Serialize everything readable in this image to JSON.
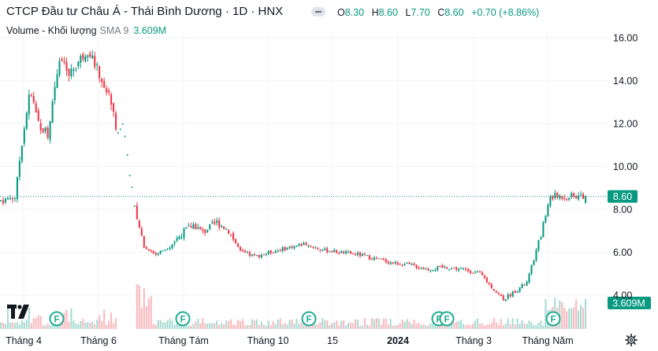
{
  "header": {
    "title": "CTCP Đầu tư Châu Á - Thái Bình Dương · 1D · HNX",
    "ohlc": [
      {
        "k": "O",
        "v": "8.30"
      },
      {
        "k": "H",
        "v": "8.60"
      },
      {
        "k": "L",
        "v": "7.70"
      },
      {
        "k": "C",
        "v": "8.60"
      },
      {
        "k": "",
        "v": "+0.70 (+8.86%)"
      }
    ]
  },
  "volume_legend": {
    "label": "Volume - Khối lượng",
    "sma": "SMA 9",
    "value": "3.609M"
  },
  "colors": {
    "up": "#089981",
    "down": "#f23645",
    "grid": "#f0f3fa",
    "axis_text": "#131722",
    "price_line": "#089981",
    "dividend": "#22ab94"
  },
  "icons": {
    "logo": "tradingview-logo-icon",
    "settings": "gear-icon",
    "dividend": "dividend-marker-icon"
  },
  "chart_data": {
    "type": "candlestick",
    "x_tick_labels": [
      "Tháng 4",
      "Tháng 6",
      "Tháng Tám",
      "Tháng 10",
      "15",
      "2024",
      "Tháng 3",
      "Tháng Năm"
    ],
    "y_tick_labels": [
      "16.00",
      "14.00",
      "12.00",
      "10.00",
      "8.00",
      "6.00",
      "4.00"
    ],
    "ylim": [
      3.5,
      16.5
    ],
    "last_price_label": "8.60",
    "last_volume_label": "3.609M",
    "dividend_marker": "F",
    "dividend_markers_count": 6,
    "price_path": [
      [
        0,
        8.4
      ],
      [
        0.025,
        8.6
      ],
      [
        0.035,
        11.0
      ],
      [
        0.05,
        13.5
      ],
      [
        0.065,
        12.0
      ],
      [
        0.08,
        11.5
      ],
      [
        0.1,
        15.2
      ],
      [
        0.115,
        14.2
      ],
      [
        0.13,
        14.8
      ],
      [
        0.15,
        15.5
      ],
      [
        0.165,
        14.5
      ],
      [
        0.19,
        13.0
      ],
      [
        0.2,
        11.5
      ],
      [
        0.21,
        12.0
      ],
      [
        0.23,
        7.8
      ],
      [
        0.245,
        6.3
      ],
      [
        0.265,
        5.9
      ],
      [
        0.29,
        6.3
      ],
      [
        0.31,
        6.9
      ],
      [
        0.33,
        7.3
      ],
      [
        0.345,
        6.9
      ],
      [
        0.37,
        7.4
      ],
      [
        0.39,
        7.0
      ],
      [
        0.41,
        6.0
      ],
      [
        0.435,
        5.8
      ],
      [
        0.46,
        6.0
      ],
      [
        0.49,
        6.2
      ],
      [
        0.52,
        6.4
      ],
      [
        0.55,
        6.1
      ],
      [
        0.58,
        6.0
      ],
      [
        0.61,
        5.9
      ],
      [
        0.64,
        5.7
      ],
      [
        0.67,
        5.5
      ],
      [
        0.7,
        5.4
      ],
      [
        0.73,
        5.2
      ],
      [
        0.76,
        5.3
      ],
      [
        0.79,
        5.2
      ],
      [
        0.82,
        5.0
      ],
      [
        0.845,
        4.2
      ],
      [
        0.86,
        3.8
      ],
      [
        0.875,
        4.1
      ],
      [
        0.9,
        4.6
      ],
      [
        0.915,
        6.0
      ],
      [
        0.93,
        7.5
      ],
      [
        0.94,
        8.6
      ]
    ],
    "gaps": [
      [
        0.2,
        0.232
      ]
    ]
  }
}
